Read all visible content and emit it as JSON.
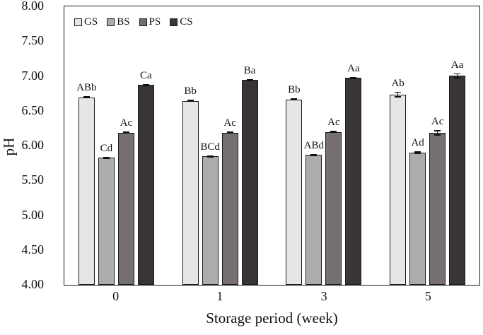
{
  "chart_data": {
    "type": "bar",
    "title": "",
    "xlabel": "Storage period (week)",
    "ylabel": "pH",
    "categories": [
      "0",
      "1",
      "3",
      "5"
    ],
    "series": [
      {
        "name": "GS",
        "color": "#e7e5e5",
        "values": [
          6.7,
          6.65,
          6.67,
          6.74
        ],
        "errors": [
          0.015,
          0.015,
          0.015,
          0.04
        ],
        "bar_labels": [
          "ABb",
          "Bb",
          "Bb",
          "Ab"
        ]
      },
      {
        "name": "BS",
        "color": "#aeabab",
        "values": [
          5.83,
          5.85,
          5.87,
          5.9
        ],
        "errors": [
          0.015,
          0.015,
          0.015,
          0.02
        ],
        "bar_labels": [
          "Cd",
          "BCd",
          "ABd",
          "Ad"
        ]
      },
      {
        "name": "PS",
        "color": "#767070",
        "values": [
          6.19,
          6.19,
          6.2,
          6.19
        ],
        "errors": [
          0.015,
          0.015,
          0.015,
          0.04
        ],
        "bar_labels": [
          "Ac",
          "Ac",
          "Ac",
          "Ac"
        ]
      },
      {
        "name": "CS",
        "color": "#3a3535",
        "values": [
          6.88,
          6.95,
          6.98,
          7.01
        ],
        "errors": [
          0.015,
          0.015,
          0.015,
          0.035
        ],
        "bar_labels": [
          "Ca",
          "Ba",
          "Aa",
          "Aa"
        ]
      }
    ],
    "ylim": [
      4.0,
      8.0
    ],
    "ytick_step": 0.5,
    "yticks": [
      "8.00",
      "7.50",
      "7.00",
      "6.50",
      "6.00",
      "5.50",
      "5.00",
      "4.50",
      "4.00"
    ],
    "grid": false,
    "legend_position": "top-left-inside",
    "bar_border_color": "#1c1c1c",
    "axis_color": "#1c1c1c",
    "error_bar_color": "#111111"
  }
}
